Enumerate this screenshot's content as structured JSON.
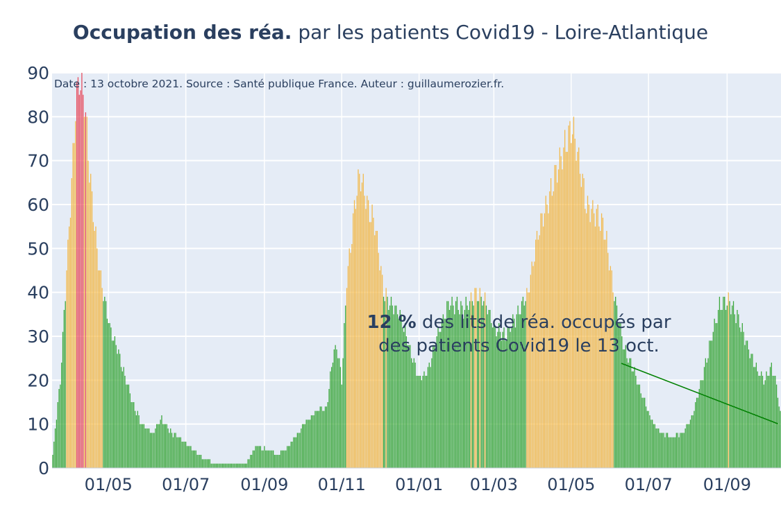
{
  "title": {
    "bold": "Occupation des réa.",
    "rest": "par les patients Covid19 - Loire-Atlantique"
  },
  "note": "Date : 13 octobre 2021. Source : Santé publique France. Auteur : guillaumerozier.fr.",
  "annotation": {
    "value": "12  %",
    "text1": " des lits de réa. occupés par",
    "text2": "des patients Covid19 le 13 oct."
  },
  "colors": {
    "plot_bg": "#e5ecf6",
    "grid": "#ffffff",
    "green": "#3aa63a",
    "orange": "#f2b94c",
    "red": "#e74c5e",
    "annotation": "#008000",
    "text": "#2a3f5f"
  },
  "chart_data": {
    "type": "bar",
    "x_axis": "date",
    "ylim": [
      0,
      90
    ],
    "yticks": [
      0,
      10,
      20,
      30,
      40,
      50,
      60,
      70,
      80,
      90
    ],
    "xticks": [
      "01/05",
      "01/07",
      "01/09",
      "01/11",
      "01/01",
      "01/03",
      "01/05",
      "01/07",
      "01/09"
    ],
    "date_range": [
      "2020-03-18",
      "2021-10-13"
    ],
    "color_rule": "green below 40, orange 40–80, red above 80",
    "profile": [
      [
        "2020-03-18",
        3
      ],
      [
        "2020-03-24",
        20
      ],
      [
        "2020-03-29",
        45
      ],
      [
        "2020-04-02",
        65
      ],
      [
        "2020-04-05",
        82
      ],
      [
        "2020-04-08",
        89
      ],
      [
        "2020-04-12",
        84
      ],
      [
        "2020-04-16",
        68
      ],
      [
        "2020-04-20",
        55
      ],
      [
        "2020-04-24",
        45
      ],
      [
        "2020-04-28",
        38
      ],
      [
        "2020-05-02",
        32
      ],
      [
        "2020-05-08",
        27
      ],
      [
        "2020-05-14",
        21
      ],
      [
        "2020-05-20",
        15
      ],
      [
        "2020-05-27",
        10
      ],
      [
        "2020-06-05",
        8
      ],
      [
        "2020-06-12",
        11
      ],
      [
        "2020-06-20",
        8
      ],
      [
        "2020-07-01",
        6
      ],
      [
        "2020-07-08",
        4
      ],
      [
        "2020-07-15",
        2
      ],
      [
        "2020-07-25",
        1
      ],
      [
        "2020-08-05",
        0.5
      ],
      [
        "2020-08-15",
        0.5
      ],
      [
        "2020-08-20",
        2
      ],
      [
        "2020-08-25",
        5
      ],
      [
        "2020-09-05",
        4
      ],
      [
        "2020-09-12",
        3
      ],
      [
        "2020-09-20",
        5
      ],
      [
        "2020-09-28",
        8
      ],
      [
        "2020-10-05",
        11
      ],
      [
        "2020-10-13",
        13
      ],
      [
        "2020-10-20",
        14
      ],
      [
        "2020-10-25",
        25
      ],
      [
        "2020-10-28",
        28
      ],
      [
        "2020-11-01",
        20
      ],
      [
        "2020-11-05",
        43
      ],
      [
        "2020-11-09",
        53
      ],
      [
        "2020-11-12",
        62
      ],
      [
        "2020-11-15",
        67
      ],
      [
        "2020-11-19",
        63
      ],
      [
        "2020-11-23",
        58
      ],
      [
        "2020-11-27",
        56
      ],
      [
        "2020-12-01",
        47
      ],
      [
        "2020-12-04",
        40
      ],
      [
        "2020-12-10",
        37
      ],
      [
        "2020-12-17",
        35
      ],
      [
        "2020-12-24",
        28
      ],
      [
        "2021-01-01",
        20
      ],
      [
        "2021-01-08",
        22
      ],
      [
        "2021-01-15",
        30
      ],
      [
        "2021-01-25",
        38
      ],
      [
        "2021-02-05",
        36
      ],
      [
        "2021-02-15",
        40
      ],
      [
        "2021-02-22",
        38
      ],
      [
        "2021-03-01",
        32
      ],
      [
        "2021-03-10",
        30
      ],
      [
        "2021-03-20",
        35
      ],
      [
        "2021-03-28",
        40
      ],
      [
        "2021-04-05",
        54
      ],
      [
        "2021-04-12",
        60
      ],
      [
        "2021-04-20",
        68
      ],
      [
        "2021-04-27",
        74
      ],
      [
        "2021-05-02",
        78
      ],
      [
        "2021-05-07",
        70
      ],
      [
        "2021-05-13",
        60
      ],
      [
        "2021-05-20",
        58
      ],
      [
        "2021-05-27",
        55
      ],
      [
        "2021-06-01",
        45
      ],
      [
        "2021-06-05",
        38
      ],
      [
        "2021-06-12",
        27
      ],
      [
        "2021-06-20",
        22
      ],
      [
        "2021-06-28",
        15
      ],
      [
        "2021-07-05",
        10
      ],
      [
        "2021-07-12",
        8
      ],
      [
        "2021-07-20",
        7
      ],
      [
        "2021-07-28",
        8
      ],
      [
        "2021-08-05",
        12
      ],
      [
        "2021-08-12",
        20
      ],
      [
        "2021-08-20",
        30
      ],
      [
        "2021-08-26",
        37
      ],
      [
        "2021-09-02",
        38
      ],
      [
        "2021-09-10",
        34
      ],
      [
        "2021-09-17",
        28
      ],
      [
        "2021-09-25",
        22
      ],
      [
        "2021-10-01",
        20
      ],
      [
        "2021-10-06",
        23
      ],
      [
        "2021-10-10",
        19
      ],
      [
        "2021-10-13",
        12
      ]
    ]
  }
}
